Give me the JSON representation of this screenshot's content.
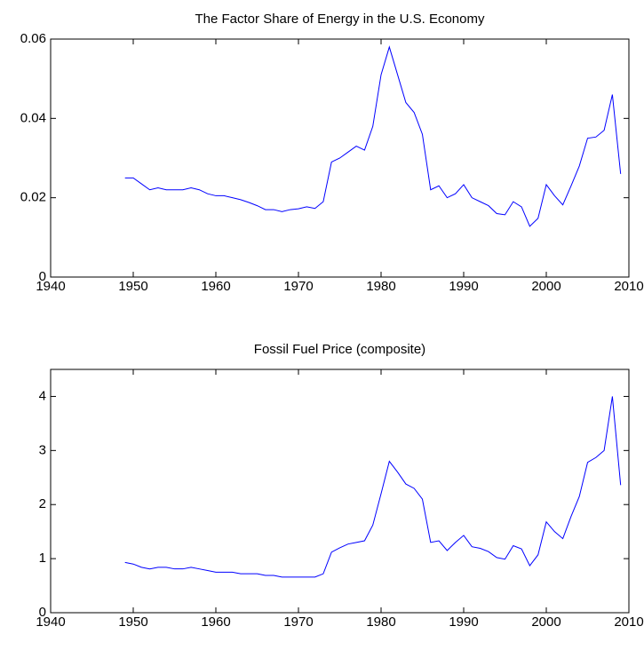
{
  "chart_data": [
    {
      "type": "line",
      "title": "The Factor Share of Energy in the U.S. Economy",
      "x": [
        1949,
        1950,
        1951,
        1952,
        1953,
        1954,
        1955,
        1956,
        1957,
        1958,
        1959,
        1960,
        1961,
        1962,
        1963,
        1964,
        1965,
        1966,
        1967,
        1968,
        1969,
        1970,
        1971,
        1972,
        1973,
        1974,
        1975,
        1976,
        1977,
        1978,
        1979,
        1980,
        1981,
        1982,
        1983,
        1984,
        1985,
        1986,
        1987,
        1988,
        1989,
        1990,
        1991,
        1992,
        1993,
        1994,
        1995,
        1996,
        1997,
        1998,
        1999,
        2000,
        2001,
        2002,
        2003,
        2004,
        2005,
        2006,
        2007,
        2008,
        2009
      ],
      "series": [
        {
          "color": "#0000ff",
          "values": [
            0.025,
            0.025,
            0.0235,
            0.022,
            0.0225,
            0.022,
            0.022,
            0.022,
            0.0225,
            0.022,
            0.021,
            0.0205,
            0.0205,
            0.02,
            0.0195,
            0.0188,
            0.018,
            0.017,
            0.017,
            0.0165,
            0.017,
            0.0172,
            0.0177,
            0.0173,
            0.019,
            0.029,
            0.03,
            0.0315,
            0.033,
            0.032,
            0.038,
            0.051,
            0.058,
            0.051,
            0.044,
            0.0415,
            0.036,
            0.022,
            0.023,
            0.02,
            0.021,
            0.0233,
            0.02,
            0.019,
            0.018,
            0.016,
            0.0157,
            0.019,
            0.0177,
            0.0128,
            0.0148,
            0.0233,
            0.0205,
            0.0182,
            0.023,
            0.028,
            0.035,
            0.0353,
            0.037,
            0.046,
            0.026
          ]
        }
      ],
      "xlim": [
        1940,
        2010
      ],
      "xticks": [
        1940,
        1950,
        1960,
        1970,
        1980,
        1990,
        2000,
        2010
      ],
      "ylim": [
        0,
        0.06
      ],
      "yticks": [
        0,
        0.02,
        0.04,
        0.06
      ]
    },
    {
      "type": "line",
      "title": "Fossil Fuel Price (composite)",
      "x": [
        1949,
        1950,
        1951,
        1952,
        1953,
        1954,
        1955,
        1956,
        1957,
        1958,
        1959,
        1960,
        1961,
        1962,
        1963,
        1964,
        1965,
        1966,
        1967,
        1968,
        1969,
        1970,
        1971,
        1972,
        1973,
        1974,
        1975,
        1976,
        1977,
        1978,
        1979,
        1980,
        1981,
        1982,
        1983,
        1984,
        1985,
        1986,
        1987,
        1988,
        1989,
        1990,
        1991,
        1992,
        1993,
        1994,
        1995,
        1996,
        1997,
        1998,
        1999,
        2000,
        2001,
        2002,
        2003,
        2004,
        2005,
        2006,
        2007,
        2008,
        2009
      ],
      "series": [
        {
          "color": "#0000ff",
          "values": [
            0.93,
            0.9,
            0.84,
            0.81,
            0.84,
            0.84,
            0.81,
            0.81,
            0.84,
            0.81,
            0.78,
            0.75,
            0.75,
            0.75,
            0.72,
            0.72,
            0.72,
            0.69,
            0.69,
            0.66,
            0.66,
            0.66,
            0.66,
            0.66,
            0.72,
            1.12,
            1.2,
            1.27,
            1.3,
            1.33,
            1.62,
            2.2,
            2.8,
            2.6,
            2.38,
            2.3,
            2.1,
            1.3,
            1.33,
            1.15,
            1.3,
            1.43,
            1.22,
            1.19,
            1.13,
            1.02,
            0.99,
            1.24,
            1.18,
            0.87,
            1.07,
            1.68,
            1.5,
            1.37,
            1.78,
            2.15,
            2.78,
            2.87,
            3.0,
            4.0,
            2.36
          ]
        }
      ],
      "xlim": [
        1940,
        2010
      ],
      "xticks": [
        1940,
        1950,
        1960,
        1970,
        1980,
        1990,
        2000,
        2010
      ],
      "ylim": [
        0,
        4.5
      ],
      "yticks": [
        0,
        1,
        2,
        3,
        4
      ]
    }
  ]
}
